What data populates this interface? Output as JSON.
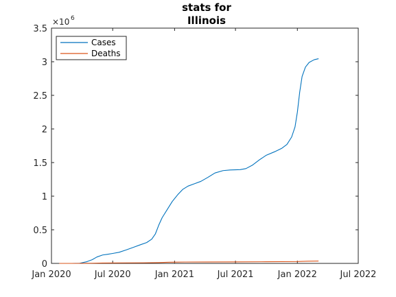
{
  "chart_data": {
    "type": "line",
    "title_lines": [
      "stats for",
      "Illinois"
    ],
    "xlabel": "",
    "ylabel": "",
    "y_multiplier_base": "×10",
    "y_multiplier_exp": "6",
    "xlim": [
      "2020-01-01",
      "2022-07-01"
    ],
    "ylim": [
      0,
      3500000
    ],
    "x_ticks": [
      {
        "date": "2020-01-01",
        "label": "Jan 2020"
      },
      {
        "date": "2020-07-01",
        "label": "Jul 2020"
      },
      {
        "date": "2021-01-01",
        "label": "Jan 2021"
      },
      {
        "date": "2021-07-01",
        "label": "Jul 2021"
      },
      {
        "date": "2022-01-01",
        "label": "Jan 2022"
      },
      {
        "date": "2022-07-01",
        "label": "Jul 2022"
      }
    ],
    "y_ticks": [
      {
        "value": 0,
        "label": "0"
      },
      {
        "value": 500000,
        "label": "0.5"
      },
      {
        "value": 1000000,
        "label": "1"
      },
      {
        "value": 1500000,
        "label": "1.5"
      },
      {
        "value": 2000000,
        "label": "2"
      },
      {
        "value": 2500000,
        "label": "2.5"
      },
      {
        "value": 3000000,
        "label": "3"
      },
      {
        "value": 3500000,
        "label": "3.5"
      }
    ],
    "grid": false,
    "legend_position": "top-left",
    "series": [
      {
        "name": "Cases",
        "color": "#0072BD",
        "points": [
          [
            "2020-01-24",
            0
          ],
          [
            "2020-03-01",
            0
          ],
          [
            "2020-03-25",
            2000
          ],
          [
            "2020-04-15",
            25000
          ],
          [
            "2020-05-01",
            55000
          ],
          [
            "2020-05-15",
            95000
          ],
          [
            "2020-06-01",
            125000
          ],
          [
            "2020-06-15",
            135000
          ],
          [
            "2020-07-01",
            148000
          ],
          [
            "2020-07-20",
            165000
          ],
          [
            "2020-08-10",
            200000
          ],
          [
            "2020-09-01",
            240000
          ],
          [
            "2020-09-20",
            275000
          ],
          [
            "2020-10-10",
            310000
          ],
          [
            "2020-10-25",
            360000
          ],
          [
            "2020-11-05",
            440000
          ],
          [
            "2020-11-15",
            570000
          ],
          [
            "2020-11-25",
            680000
          ],
          [
            "2020-12-10",
            800000
          ],
          [
            "2020-12-25",
            920000
          ],
          [
            "2021-01-10",
            1020000
          ],
          [
            "2021-01-25",
            1100000
          ],
          [
            "2021-02-10",
            1150000
          ],
          [
            "2021-03-01",
            1185000
          ],
          [
            "2021-03-20",
            1220000
          ],
          [
            "2021-04-10",
            1280000
          ],
          [
            "2021-05-01",
            1345000
          ],
          [
            "2021-05-25",
            1380000
          ],
          [
            "2021-06-15",
            1390000
          ],
          [
            "2021-07-15",
            1395000
          ],
          [
            "2021-08-01",
            1410000
          ],
          [
            "2021-08-20",
            1460000
          ],
          [
            "2021-09-10",
            1540000
          ],
          [
            "2021-10-01",
            1610000
          ],
          [
            "2021-10-25",
            1660000
          ],
          [
            "2021-11-15",
            1710000
          ],
          [
            "2021-12-01",
            1770000
          ],
          [
            "2021-12-15",
            1880000
          ],
          [
            "2021-12-25",
            2030000
          ],
          [
            "2022-01-01",
            2250000
          ],
          [
            "2022-01-08",
            2550000
          ],
          [
            "2022-01-15",
            2780000
          ],
          [
            "2022-01-25",
            2920000
          ],
          [
            "2022-02-05",
            2990000
          ],
          [
            "2022-02-20",
            3030000
          ],
          [
            "2022-03-05",
            3045000
          ]
        ]
      },
      {
        "name": "Deaths",
        "color": "#D95319",
        "points": [
          [
            "2020-01-24",
            0
          ],
          [
            "2020-03-15",
            0
          ],
          [
            "2020-05-01",
            2700
          ],
          [
            "2020-06-01",
            6000
          ],
          [
            "2020-08-01",
            7500
          ],
          [
            "2020-10-01",
            9000
          ],
          [
            "2020-11-15",
            12000
          ],
          [
            "2020-12-15",
            17000
          ],
          [
            "2021-01-31",
            20500
          ],
          [
            "2021-04-01",
            21500
          ],
          [
            "2021-07-01",
            22600
          ],
          [
            "2021-10-01",
            24500
          ],
          [
            "2021-12-31",
            27000
          ],
          [
            "2022-02-01",
            32000
          ],
          [
            "2022-03-05",
            35500
          ]
        ]
      }
    ]
  }
}
